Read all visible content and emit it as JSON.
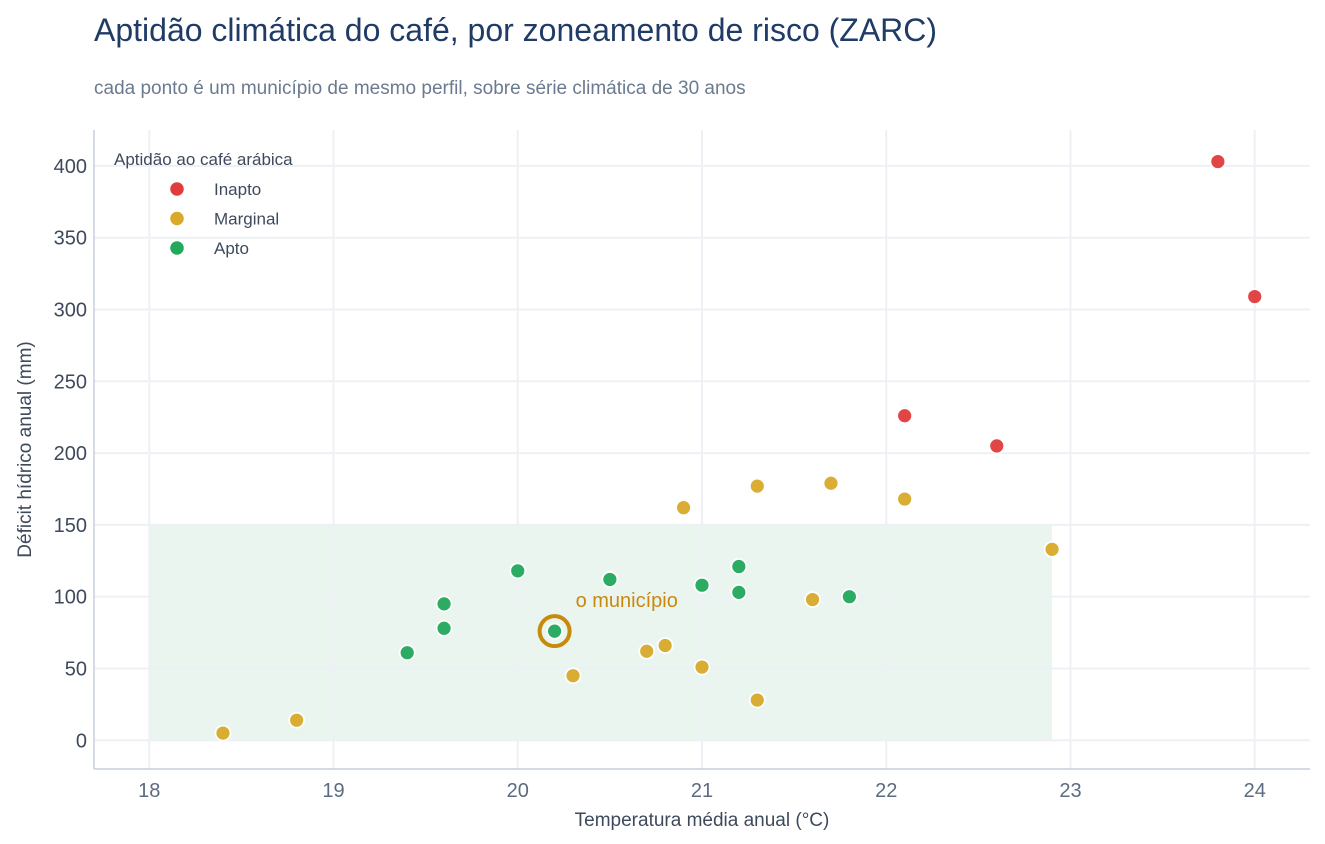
{
  "header": {
    "title": "Aptidão climática do café, por zoneamento de risco (ZARC)",
    "subtitle": "cada ponto é um município de mesmo perfil, sobre série climática de 30 anos"
  },
  "chart_data": {
    "type": "scatter",
    "title": "Aptidão climática do café, por zoneamento de risco (ZARC)",
    "subtitle": "cada ponto é um município de mesmo perfil, sobre série climática de 30 anos",
    "xlabel": "Temperatura média anual (°C)",
    "ylabel": "Déficit hídrico anual (mm)",
    "xlim": [
      17.7,
      24.3
    ],
    "ylim": [
      -20,
      425
    ],
    "xticks": [
      18,
      19,
      20,
      21,
      22,
      23,
      24
    ],
    "yticks": [
      0,
      50,
      100,
      150,
      200,
      250,
      300,
      350,
      400
    ],
    "grid": true,
    "legend": {
      "title": "Aptidão ao café arábica",
      "placement": "top-left"
    },
    "shaded_region": {
      "x": [
        18,
        22.9
      ],
      "y": [
        0,
        150
      ],
      "color": "#e9f5ee"
    },
    "series": [
      {
        "name": "Inapto",
        "color": "#e03c3c",
        "points": [
          {
            "x": 23.8,
            "y": 403
          },
          {
            "x": 24.0,
            "y": 309
          },
          {
            "x": 22.1,
            "y": 226
          },
          {
            "x": 22.6,
            "y": 205
          }
        ]
      },
      {
        "name": "Marginal",
        "color": "#d9a92a",
        "points": [
          {
            "x": 20.9,
            "y": 162
          },
          {
            "x": 21.3,
            "y": 177
          },
          {
            "x": 21.7,
            "y": 179
          },
          {
            "x": 22.1,
            "y": 168
          },
          {
            "x": 22.9,
            "y": 133
          },
          {
            "x": 21.6,
            "y": 98
          },
          {
            "x": 20.8,
            "y": 66
          },
          {
            "x": 20.7,
            "y": 62
          },
          {
            "x": 21.0,
            "y": 51
          },
          {
            "x": 20.3,
            "y": 45
          },
          {
            "x": 21.3,
            "y": 28
          },
          {
            "x": 18.4,
            "y": 5
          },
          {
            "x": 18.8,
            "y": 14
          }
        ]
      },
      {
        "name": "Apto",
        "color": "#22a95b",
        "points": [
          {
            "x": 20.0,
            "y": 118
          },
          {
            "x": 20.5,
            "y": 112
          },
          {
            "x": 21.0,
            "y": 108
          },
          {
            "x": 21.2,
            "y": 121
          },
          {
            "x": 21.2,
            "y": 103
          },
          {
            "x": 21.8,
            "y": 100
          },
          {
            "x": 19.6,
            "y": 95
          },
          {
            "x": 19.6,
            "y": 78
          },
          {
            "x": 19.4,
            "y": 61
          },
          {
            "x": 20.2,
            "y": 76
          }
        ]
      }
    ],
    "annotation": {
      "text": "o município",
      "x": 20.2,
      "y": 76,
      "color": "#c88a0a"
    }
  }
}
